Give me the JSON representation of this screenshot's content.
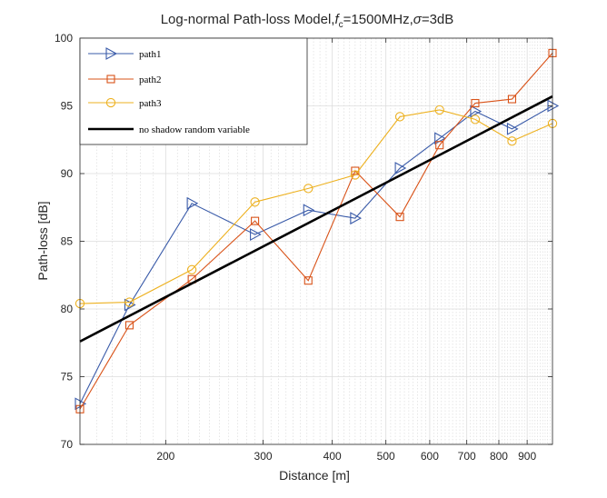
{
  "chart_data": {
    "type": "line",
    "title": {
      "prefix": "Log-normal Path-loss Model,",
      "f": "f",
      "c": "c",
      "mid": "=1500MHz,",
      "sigma": "σ",
      "suffix": "=3dB"
    },
    "xlabel": "Distance [m]",
    "ylabel": "Path-loss [dB]",
    "xscale": "log",
    "xlim": [
      140,
      1000
    ],
    "ylim": [
      70,
      100
    ],
    "grid": true,
    "minor_grid_x": true,
    "legend_position": "top-left",
    "xticks": [
      {
        "value": 200,
        "label": "200"
      },
      {
        "value": 300,
        "label": "300"
      },
      {
        "value": 400,
        "label": "400"
      },
      {
        "value": 500,
        "label": "500"
      },
      {
        "value": 600,
        "label": "600"
      },
      {
        "value": 700,
        "label": "700"
      },
      {
        "value": 800,
        "label": "800"
      },
      {
        "value": 900,
        "label": "900"
      }
    ],
    "yticks": [
      {
        "value": 70,
        "label": "70"
      },
      {
        "value": 75,
        "label": "75"
      },
      {
        "value": 80,
        "label": "80"
      },
      {
        "value": 85,
        "label": "85"
      },
      {
        "value": 90,
        "label": "90"
      },
      {
        "value": 95,
        "label": "95"
      },
      {
        "value": 100,
        "label": "100"
      }
    ],
    "x": [
      140,
      172,
      223,
      290,
      362,
      440,
      530,
      625,
      725,
      845,
      1000
    ],
    "series": [
      {
        "name": "path1",
        "marker": "triangle-right",
        "color": "#3a5ba9",
        "values": [
          73.0,
          80.3,
          87.8,
          85.5,
          87.3,
          86.7,
          90.4,
          92.6,
          94.6,
          93.3,
          95.0
        ]
      },
      {
        "name": "path2",
        "marker": "square",
        "color": "#d95319",
        "values": [
          72.6,
          78.8,
          82.2,
          86.5,
          82.1,
          90.2,
          86.8,
          92.1,
          95.2,
          95.5,
          98.9
        ]
      },
      {
        "name": "path3",
        "marker": "circle",
        "color": "#edb120",
        "values": [
          80.4,
          80.5,
          82.9,
          87.9,
          88.9,
          89.9,
          94.2,
          94.7,
          94.0,
          92.4,
          93.7
        ]
      },
      {
        "name": "no shadow random variable",
        "marker": "none",
        "color": "#000000",
        "values": [
          77.6,
          null,
          null,
          null,
          null,
          null,
          null,
          null,
          null,
          null,
          95.7
        ]
      }
    ]
  }
}
